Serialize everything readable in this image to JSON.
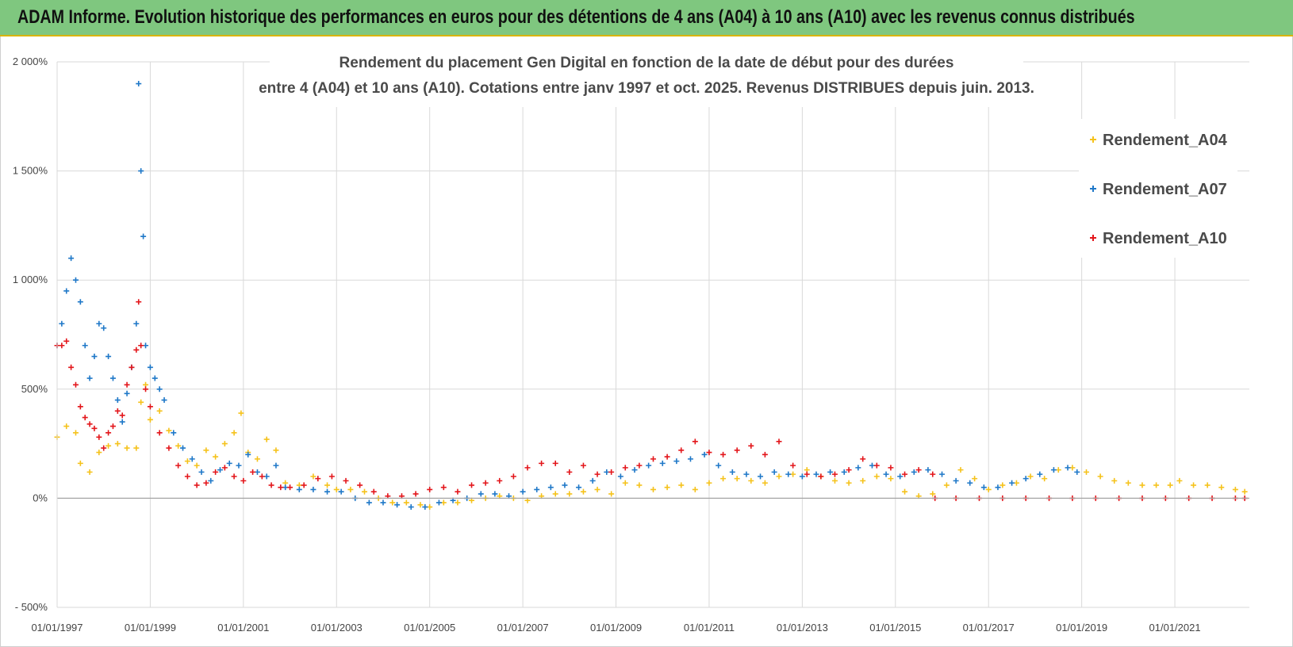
{
  "banner": {
    "title": "ADAM Informe. Evolution historique des performances en euros pour des détentions de 4 ans (A04) à 10 ans (A10) avec les revenus connus distribués"
  },
  "colors": {
    "banner_bg": "#7fc77f",
    "banner_border": "#d9b400",
    "A04": "#f5c21b",
    "A07": "#1f78c8",
    "A10": "#e3161b",
    "grid": "#d9d9d9",
    "axis": "#a6a6a6"
  },
  "chart_data": {
    "type": "scatter",
    "title_line1": "Rendement du placement Gen Digital en fonction de la date de début pour des durées",
    "title_line2": "entre 4 (A04) et 10 ans (A10). Cotations entre janv 1997 et oct. 2025.  Revenus DISTRIBUES depuis juin. 2013.",
    "xlim": [
      1997.0,
      2022.6
    ],
    "ylim": [
      -500,
      2000
    ],
    "y_ticks": [
      {
        "value": 2000,
        "label": "2 000%"
      },
      {
        "value": 1500,
        "label": "1 500%"
      },
      {
        "value": 1000,
        "label": "1 000%"
      },
      {
        "value": 500,
        "label": "500%"
      },
      {
        "value": 0,
        "label": "0%"
      },
      {
        "value": -500,
        "label": "- 500%"
      }
    ],
    "x_ticks": [
      {
        "value": 1997,
        "label": "01/01/1997"
      },
      {
        "value": 1999,
        "label": "01/01/1999"
      },
      {
        "value": 2001,
        "label": "01/01/2001"
      },
      {
        "value": 2003,
        "label": "01/01/2003"
      },
      {
        "value": 2005,
        "label": "01/01/2005"
      },
      {
        "value": 2007,
        "label": "01/01/2007"
      },
      {
        "value": 2009,
        "label": "01/01/2009"
      },
      {
        "value": 2011,
        "label": "01/01/2011"
      },
      {
        "value": 2013,
        "label": "01/01/2013"
      },
      {
        "value": 2015,
        "label": "01/01/2015"
      },
      {
        "value": 2017,
        "label": "01/01/2017"
      },
      {
        "value": 2019,
        "label": "01/01/2019"
      },
      {
        "value": 2021,
        "label": "01/01/2021"
      }
    ],
    "legend_position": "right",
    "series": [
      {
        "name": "Rendement_A04",
        "color": "#f5c21b",
        "x": [
          1997.0,
          1997.2,
          1997.4,
          1997.5,
          1997.7,
          1997.9,
          1998.1,
          1998.3,
          1998.5,
          1998.7,
          1998.8,
          1998.9,
          1999.0,
          1999.2,
          1999.4,
          1999.6,
          1999.8,
          2000.0,
          2000.2,
          2000.4,
          2000.6,
          2000.8,
          2000.95,
          2001.1,
          2001.3,
          2001.5,
          2001.7,
          2001.9,
          2002.2,
          2002.5,
          2002.8,
          2003.0,
          2003.3,
          2003.6,
          2003.9,
          2004.2,
          2004.5,
          2004.8,
          2005.0,
          2005.3,
          2005.6,
          2005.9,
          2006.2,
          2006.5,
          2006.8,
          2007.1,
          2007.4,
          2007.7,
          2008.0,
          2008.3,
          2008.6,
          2008.9,
          2009.2,
          2009.5,
          2009.8,
          2010.1,
          2010.4,
          2010.7,
          2011.0,
          2011.3,
          2011.6,
          2011.9,
          2012.2,
          2012.5,
          2012.8,
          2013.1,
          2013.4,
          2013.7,
          2014.0,
          2014.3,
          2014.6,
          2014.9,
          2015.2,
          2015.5,
          2015.8,
          2016.1,
          2016.4,
          2016.7,
          2017.0,
          2017.3,
          2017.6,
          2017.9,
          2018.2,
          2018.5,
          2018.8,
          2019.1,
          2019.4,
          2019.7,
          2020.0,
          2020.3,
          2020.6,
          2020.9,
          2021.1,
          2021.4,
          2021.7,
          2022.0,
          2022.3,
          2022.5
        ],
        "y": [
          280,
          330,
          300,
          160,
          120,
          210,
          240,
          250,
          230,
          230,
          440,
          520,
          360,
          400,
          310,
          240,
          170,
          150,
          220,
          190,
          250,
          300,
          390,
          210,
          180,
          270,
          220,
          70,
          60,
          100,
          60,
          40,
          40,
          30,
          0,
          -20,
          -20,
          -30,
          -40,
          -20,
          -20,
          -10,
          0,
          10,
          0,
          -10,
          10,
          20,
          20,
          30,
          40,
          20,
          70,
          60,
          40,
          50,
          60,
          40,
          70,
          90,
          90,
          80,
          70,
          100,
          110,
          130,
          100,
          80,
          70,
          80,
          100,
          90,
          30,
          10,
          20,
          60,
          130,
          90,
          40,
          60,
          70,
          100,
          90,
          130,
          140,
          120,
          100,
          80,
          70,
          60,
          60,
          60,
          80,
          60,
          60,
          50,
          40,
          30
        ]
      },
      {
        "name": "Rendement_A07",
        "color": "#1f78c8",
        "x": [
          1997.0,
          1997.1,
          1997.2,
          1997.3,
          1997.4,
          1997.5,
          1997.6,
          1997.7,
          1997.8,
          1997.9,
          1998.0,
          1998.1,
          1998.2,
          1998.3,
          1998.4,
          1998.5,
          1998.6,
          1998.7,
          1998.75,
          1998.8,
          1998.85,
          1998.9,
          1999.0,
          1999.1,
          1999.2,
          1999.3,
          1999.5,
          1999.7,
          1999.9,
          2000.1,
          2000.3,
          2000.5,
          2000.7,
          2000.9,
          2001.1,
          2001.3,
          2001.5,
          2001.7,
          2001.9,
          2002.2,
          2002.5,
          2002.8,
          2003.1,
          2003.4,
          2003.7,
          2004.0,
          2004.3,
          2004.6,
          2004.9,
          2005.2,
          2005.5,
          2005.8,
          2006.1,
          2006.4,
          2006.7,
          2007.0,
          2007.3,
          2007.6,
          2007.9,
          2008.2,
          2008.5,
          2008.8,
          2009.1,
          2009.4,
          2009.7,
          2010.0,
          2010.3,
          2010.6,
          2010.9,
          2011.2,
          2011.5,
          2011.8,
          2012.1,
          2012.4,
          2012.7,
          2013.0,
          2013.3,
          2013.6,
          2013.9,
          2014.2,
          2014.5,
          2014.8,
          2015.1,
          2015.4,
          2015.7,
          2016.0,
          2016.3,
          2016.6,
          2016.9,
          2017.2,
          2017.5,
          2017.8,
          2018.1,
          2018.4,
          2018.7,
          2018.9
        ],
        "y": [
          700,
          800,
          950,
          1100,
          1000,
          900,
          700,
          550,
          650,
          800,
          780,
          650,
          550,
          450,
          350,
          480,
          600,
          800,
          1900,
          1500,
          1200,
          700,
          600,
          550,
          500,
          450,
          300,
          230,
          180,
          120,
          80,
          130,
          160,
          150,
          200,
          120,
          100,
          150,
          50,
          40,
          40,
          30,
          30,
          0,
          -20,
          -20,
          -30,
          -40,
          -40,
          -20,
          -10,
          0,
          20,
          20,
          10,
          30,
          40,
          50,
          60,
          50,
          80,
          120,
          100,
          130,
          150,
          160,
          170,
          180,
          200,
          150,
          120,
          110,
          100,
          120,
          110,
          100,
          110,
          120,
          120,
          140,
          150,
          110,
          100,
          120,
          130,
          110,
          80,
          70,
          50,
          50,
          70,
          90,
          110,
          130,
          140,
          120
        ]
      },
      {
        "name": "Rendement_A10",
        "color": "#e3161b",
        "x": [
          1997.0,
          1997.1,
          1997.2,
          1997.3,
          1997.4,
          1997.5,
          1997.6,
          1997.7,
          1997.8,
          1997.9,
          1998.0,
          1998.1,
          1998.2,
          1998.3,
          1998.4,
          1998.5,
          1998.6,
          1998.7,
          1998.75,
          1998.8,
          1998.9,
          1999.0,
          1999.2,
          1999.4,
          1999.6,
          1999.8,
          2000.0,
          2000.2,
          2000.4,
          2000.6,
          2000.8,
          2001.0,
          2001.2,
          2001.4,
          2001.6,
          2001.8,
          2002.0,
          2002.3,
          2002.6,
          2002.9,
          2003.2,
          2003.5,
          2003.8,
          2004.1,
          2004.4,
          2004.7,
          2005.0,
          2005.3,
          2005.6,
          2005.9,
          2006.2,
          2006.5,
          2006.8,
          2007.1,
          2007.4,
          2007.7,
          2008.0,
          2008.3,
          2008.6,
          2008.9,
          2009.2,
          2009.5,
          2009.8,
          2010.1,
          2010.4,
          2010.7,
          2011.0,
          2011.3,
          2011.6,
          2011.9,
          2012.2,
          2012.5,
          2012.8,
          2013.1,
          2013.4,
          2013.7,
          2014.0,
          2014.3,
          2014.6,
          2014.9,
          2015.2,
          2015.5,
          2015.8,
          2015.85,
          2016.3,
          2016.8,
          2017.3,
          2017.8,
          2018.3,
          2018.8,
          2019.3,
          2019.8,
          2020.3,
          2020.8,
          2021.3,
          2021.8,
          2022.3,
          2022.5
        ],
        "y": [
          700,
          700,
          720,
          600,
          520,
          420,
          370,
          340,
          320,
          280,
          230,
          300,
          330,
          400,
          380,
          520,
          600,
          680,
          900,
          700,
          500,
          420,
          300,
          230,
          150,
          100,
          60,
          70,
          120,
          140,
          100,
          80,
          120,
          100,
          60,
          50,
          50,
          60,
          90,
          100,
          80,
          60,
          30,
          10,
          10,
          20,
          40,
          50,
          30,
          60,
          70,
          80,
          100,
          140,
          160,
          160,
          120,
          150,
          110,
          120,
          140,
          150,
          180,
          190,
          220,
          260,
          210,
          200,
          220,
          240,
          200,
          260,
          150,
          110,
          100,
          110,
          130,
          180,
          150,
          140,
          110,
          130,
          110,
          0,
          0,
          0,
          0,
          0,
          0,
          0,
          0,
          0,
          0,
          0,
          0,
          0,
          0,
          0
        ]
      }
    ]
  }
}
